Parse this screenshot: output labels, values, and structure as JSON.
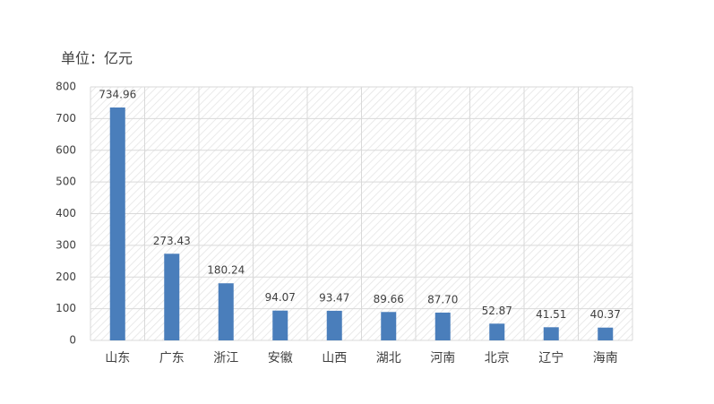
{
  "chart_data": {
    "type": "bar",
    "title": "单位：亿元",
    "categories": [
      "山东",
      "广东",
      "浙江",
      "安徽",
      "山西",
      "湖北",
      "河南",
      "北京",
      "辽宁",
      "海南"
    ],
    "values": [
      734.96,
      273.43,
      180.24,
      94.07,
      93.47,
      89.66,
      87.7,
      52.87,
      41.51,
      40.37
    ],
    "value_labels": [
      "734.96",
      "273.43",
      "180.24",
      "94.07",
      "93.47",
      "89.66",
      "87.70",
      "52.87",
      "41.51",
      "40.37"
    ],
    "color": "#4a7ebb",
    "ylim": [
      0,
      800
    ],
    "yticks": [
      0,
      100,
      200,
      300,
      400,
      500,
      600,
      700,
      800
    ],
    "grid": true
  }
}
